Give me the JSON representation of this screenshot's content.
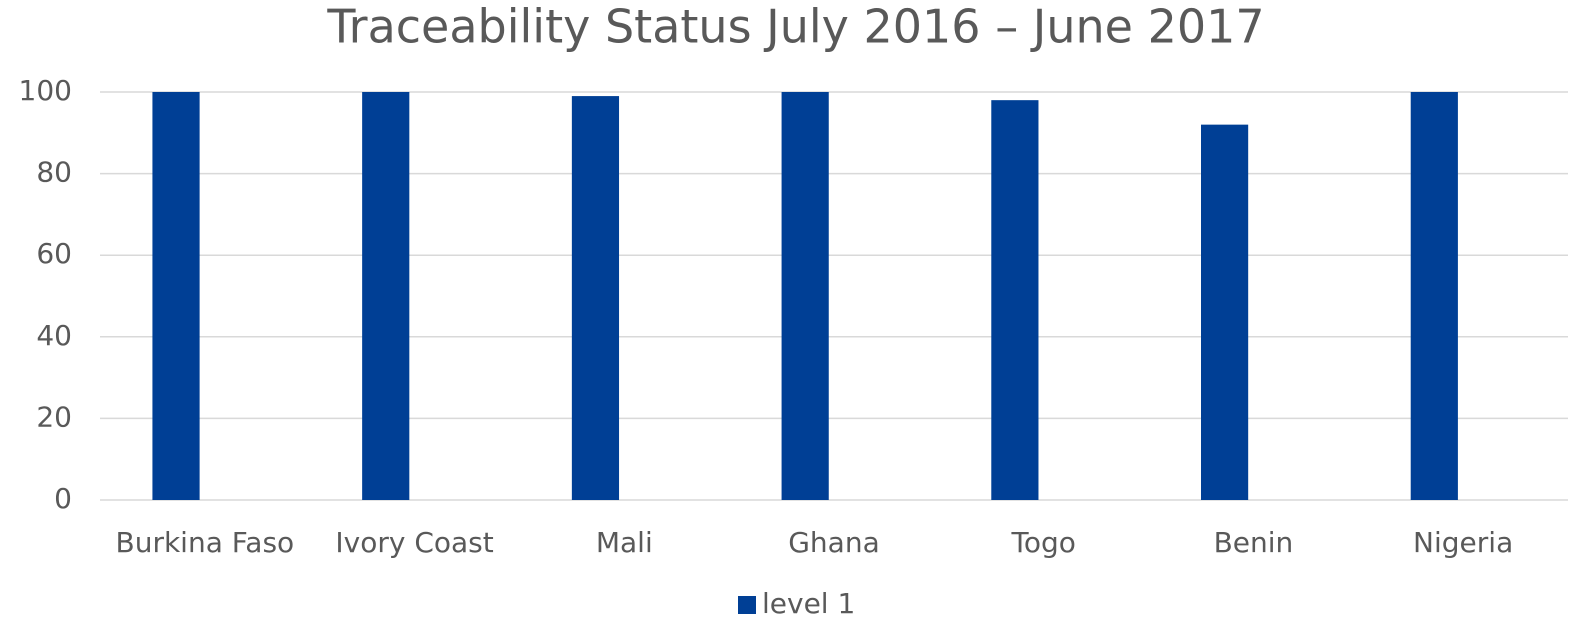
{
  "chart_data": {
    "type": "bar",
    "title": "Traceability Status July 2016 – June 2017",
    "categories": [
      "Burkina Faso",
      "Ivory Coast",
      "Mali",
      "Ghana",
      "Togo",
      "Benin",
      "Nigeria"
    ],
    "series": [
      {
        "name": "level 1",
        "color": "#003f95",
        "values": [
          100,
          100,
          99,
          100,
          98,
          92,
          100
        ]
      }
    ],
    "ylim": [
      0,
      100
    ],
    "yticks": [
      0,
      20,
      40,
      60,
      80,
      100
    ],
    "grid": true,
    "legend": "bottom"
  }
}
